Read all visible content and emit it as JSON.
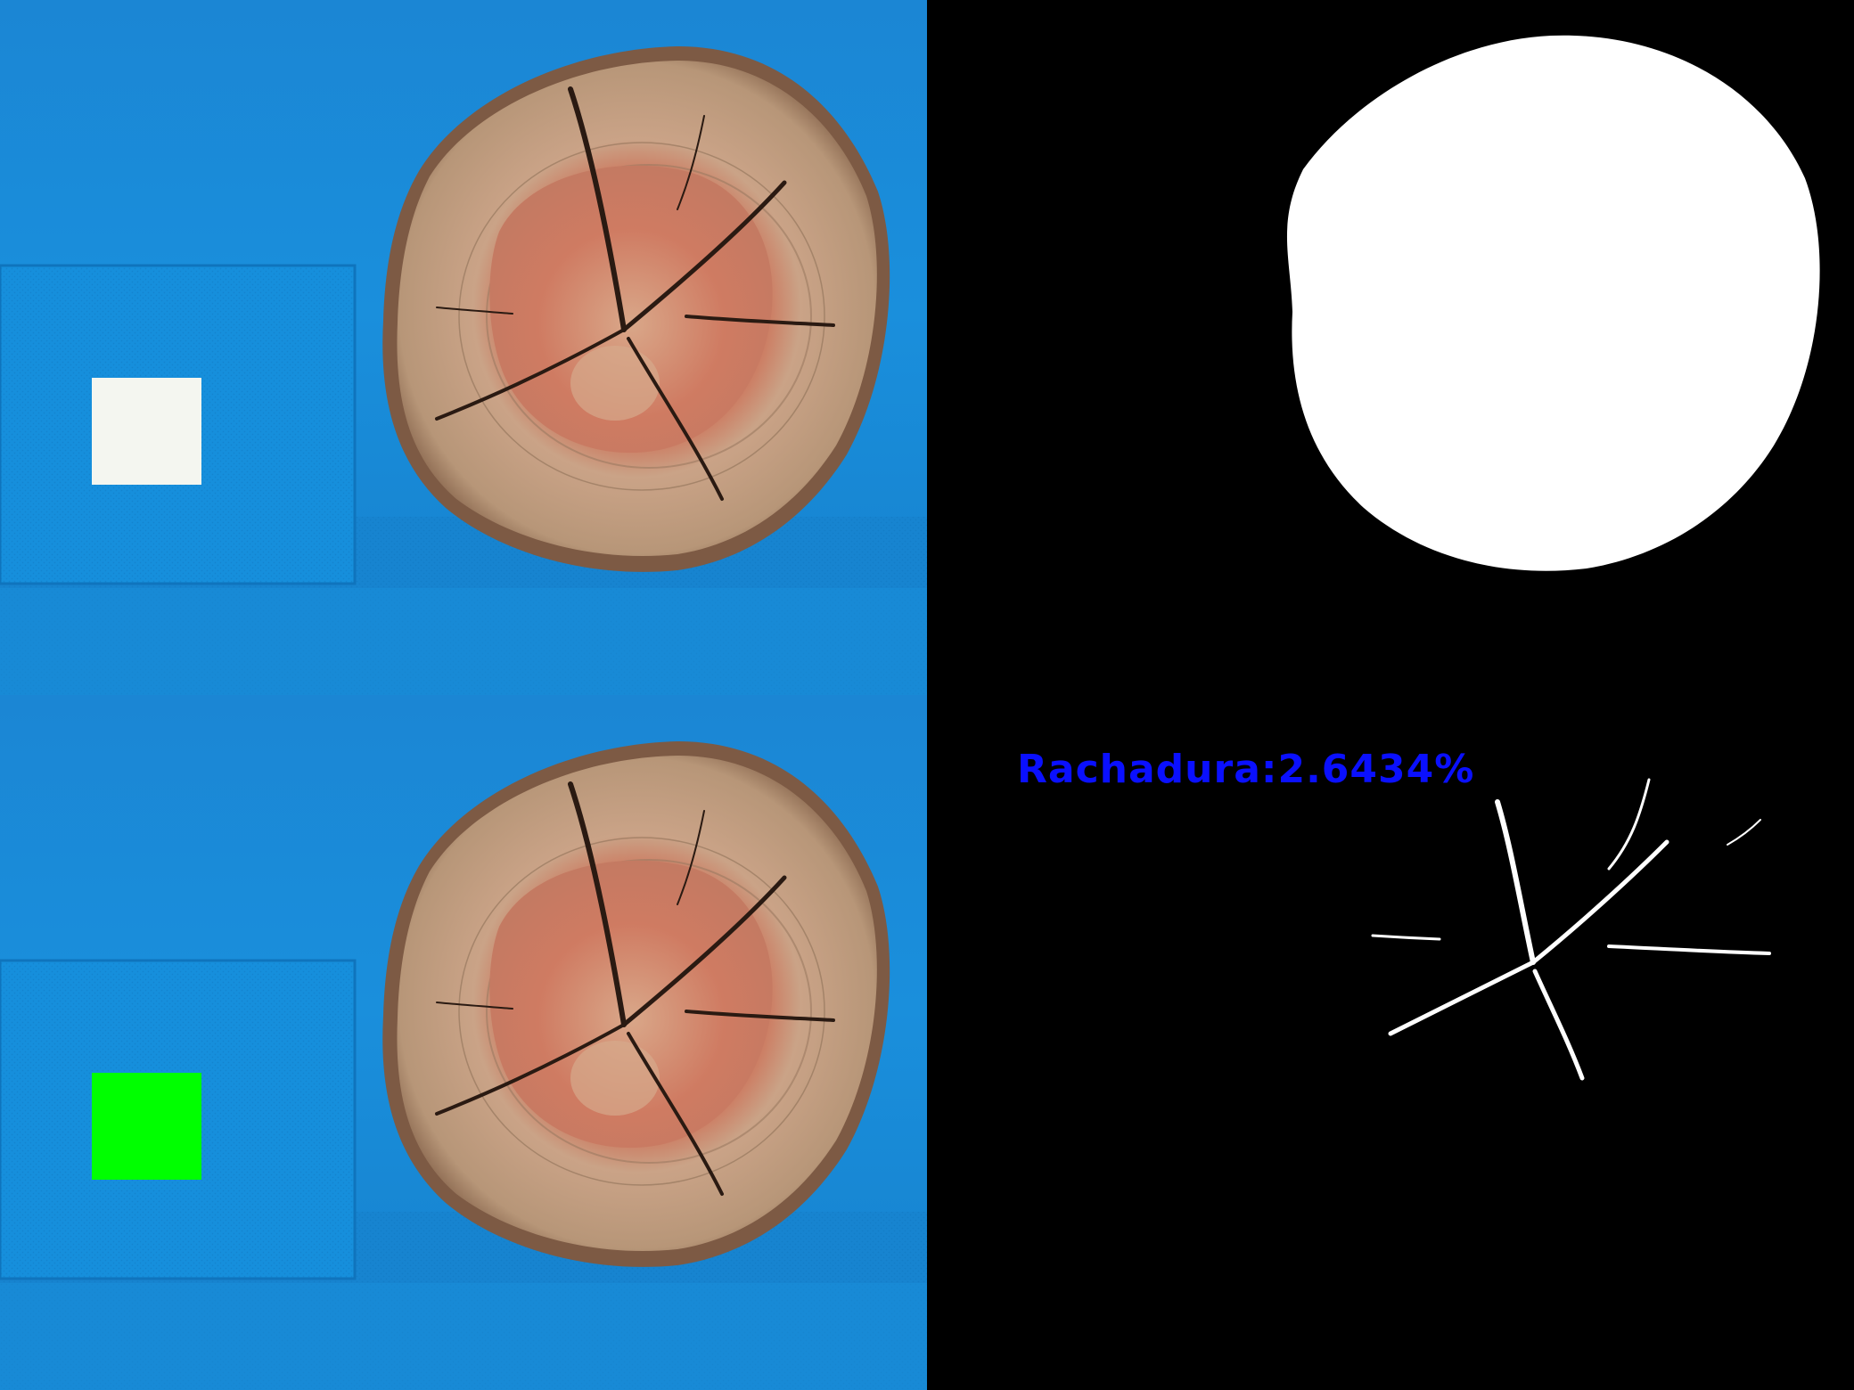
{
  "crack_readout": {
    "text": "Rachadura:2.6434%",
    "crack_percent": 2.6434
  },
  "colors": {
    "background_blue": "#1a8ad6",
    "label_blue": "#0a10ff",
    "marker_green": "#00ff00",
    "marker_white": "#f4f6f0",
    "mask_white": "#ffffff",
    "mask_black": "#000000"
  },
  "panels": [
    "original-photo",
    "log-mask",
    "marked-photo",
    "crack-mask"
  ]
}
